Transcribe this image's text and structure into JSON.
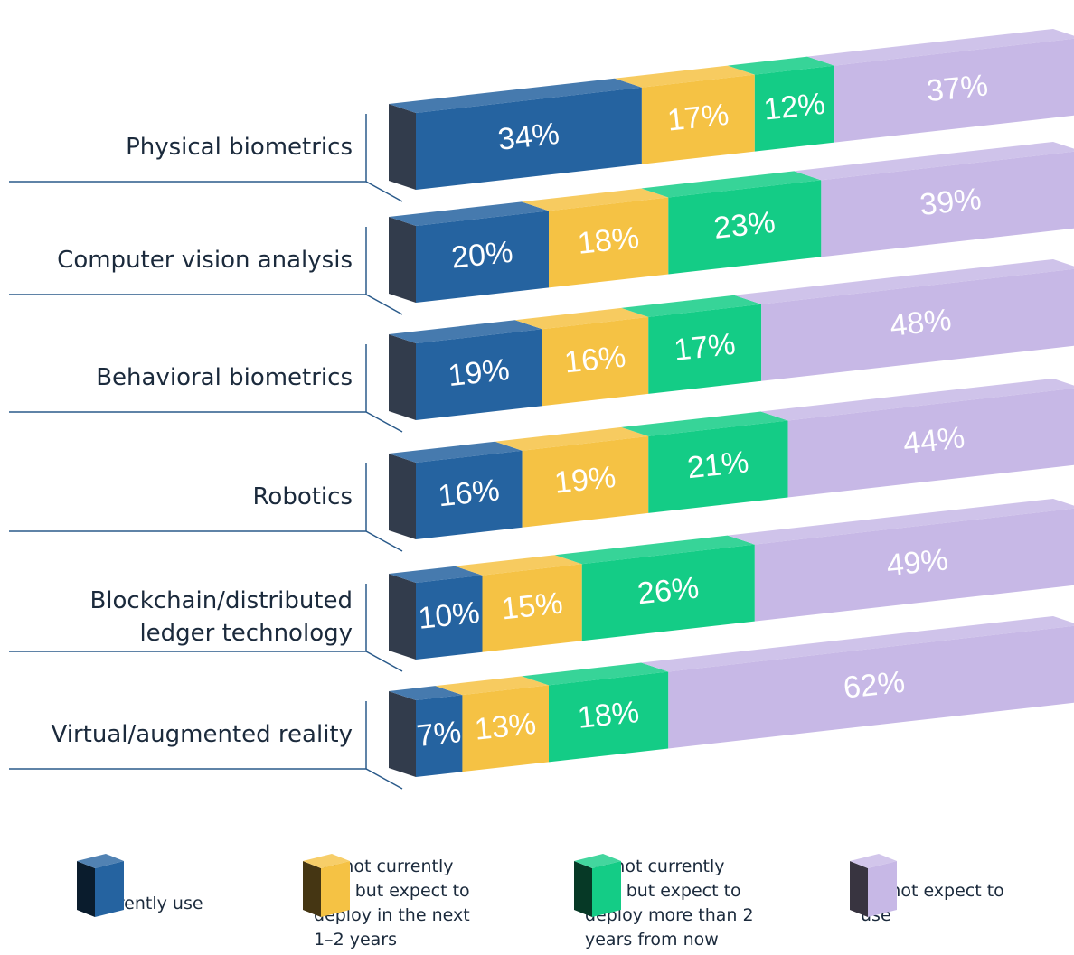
{
  "chart_data": {
    "type": "bar3d",
    "categories": [
      "Physical biometrics",
      "Computer vision analysis",
      "Behavioral biometrics",
      "Robotics",
      "Blockchain/distributed ledger technology",
      "Virtual/augmented reality"
    ],
    "series": [
      {
        "name": "Currently use",
        "color": "#2563a0",
        "values": [
          34,
          20,
          19,
          16,
          10,
          7
        ],
        "value_labels": [
          "34%",
          "20%",
          "19%",
          "16%",
          "10%",
          "7%"
        ]
      },
      {
        "name": "Do not currently use, but expect to deploy in the next 1–2 years",
        "color": "#f5c244",
        "values": [
          17,
          18,
          16,
          19,
          15,
          13
        ],
        "value_labels": [
          "17%",
          "18%",
          "16%",
          "19%",
          "15%",
          "13%"
        ]
      },
      {
        "name": "Do not currently use, but expect to deploy more than 2 years from now",
        "color": "#14cc86",
        "values": [
          12,
          23,
          17,
          21,
          26,
          18
        ],
        "value_labels": [
          "12%",
          "23%",
          "17%",
          "21%",
          "26%",
          "18%"
        ]
      },
      {
        "name": "Do not expect to use",
        "color": "#c7b8e6",
        "values": [
          37,
          39,
          48,
          44,
          49,
          62
        ],
        "value_labels": [
          "37%",
          "39%",
          "48%",
          "44%",
          "49%",
          "62%"
        ]
      }
    ]
  }
}
